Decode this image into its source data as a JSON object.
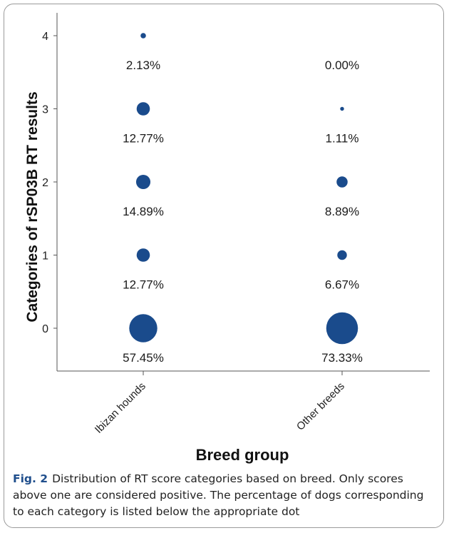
{
  "chart_data": {
    "type": "scatter",
    "xlabel": "Breed group",
    "ylabel": "Categories of rSP03B RT results",
    "categories": [
      "Ibizan hounds",
      "Other breeds"
    ],
    "y_ticks": [
      "0",
      "1",
      "2",
      "3",
      "4"
    ],
    "ylim": [
      -0.6,
      4.3
    ],
    "grid": false,
    "marker_color": "#1a4b8c",
    "series": [
      {
        "category": "Ibizan hounds",
        "points": [
          {
            "y": 4,
            "value": 2.13,
            "label": "2.13%"
          },
          {
            "y": 3,
            "value": 12.77,
            "label": "12.77%"
          },
          {
            "y": 2,
            "value": 14.89,
            "label": "14.89%"
          },
          {
            "y": 1,
            "value": 12.77,
            "label": "12.77%"
          },
          {
            "y": 0,
            "value": 57.45,
            "label": "57.45%"
          }
        ]
      },
      {
        "category": "Other breeds",
        "points": [
          {
            "y": 4,
            "value": 0.0,
            "label": "0.00%"
          },
          {
            "y": 3,
            "value": 1.11,
            "label": "1.11%"
          },
          {
            "y": 2,
            "value": 8.89,
            "label": "8.89%"
          },
          {
            "y": 1,
            "value": 6.67,
            "label": "6.67%"
          },
          {
            "y": 0,
            "value": 73.33,
            "label": "73.33%"
          }
        ]
      }
    ]
  },
  "caption": {
    "label": "Fig. 2",
    "text": "Distribution of RT score categories based on breed. Only scores above one are considered positive. The percentage of dogs corresponding to each category is listed below the appropriate dot"
  }
}
